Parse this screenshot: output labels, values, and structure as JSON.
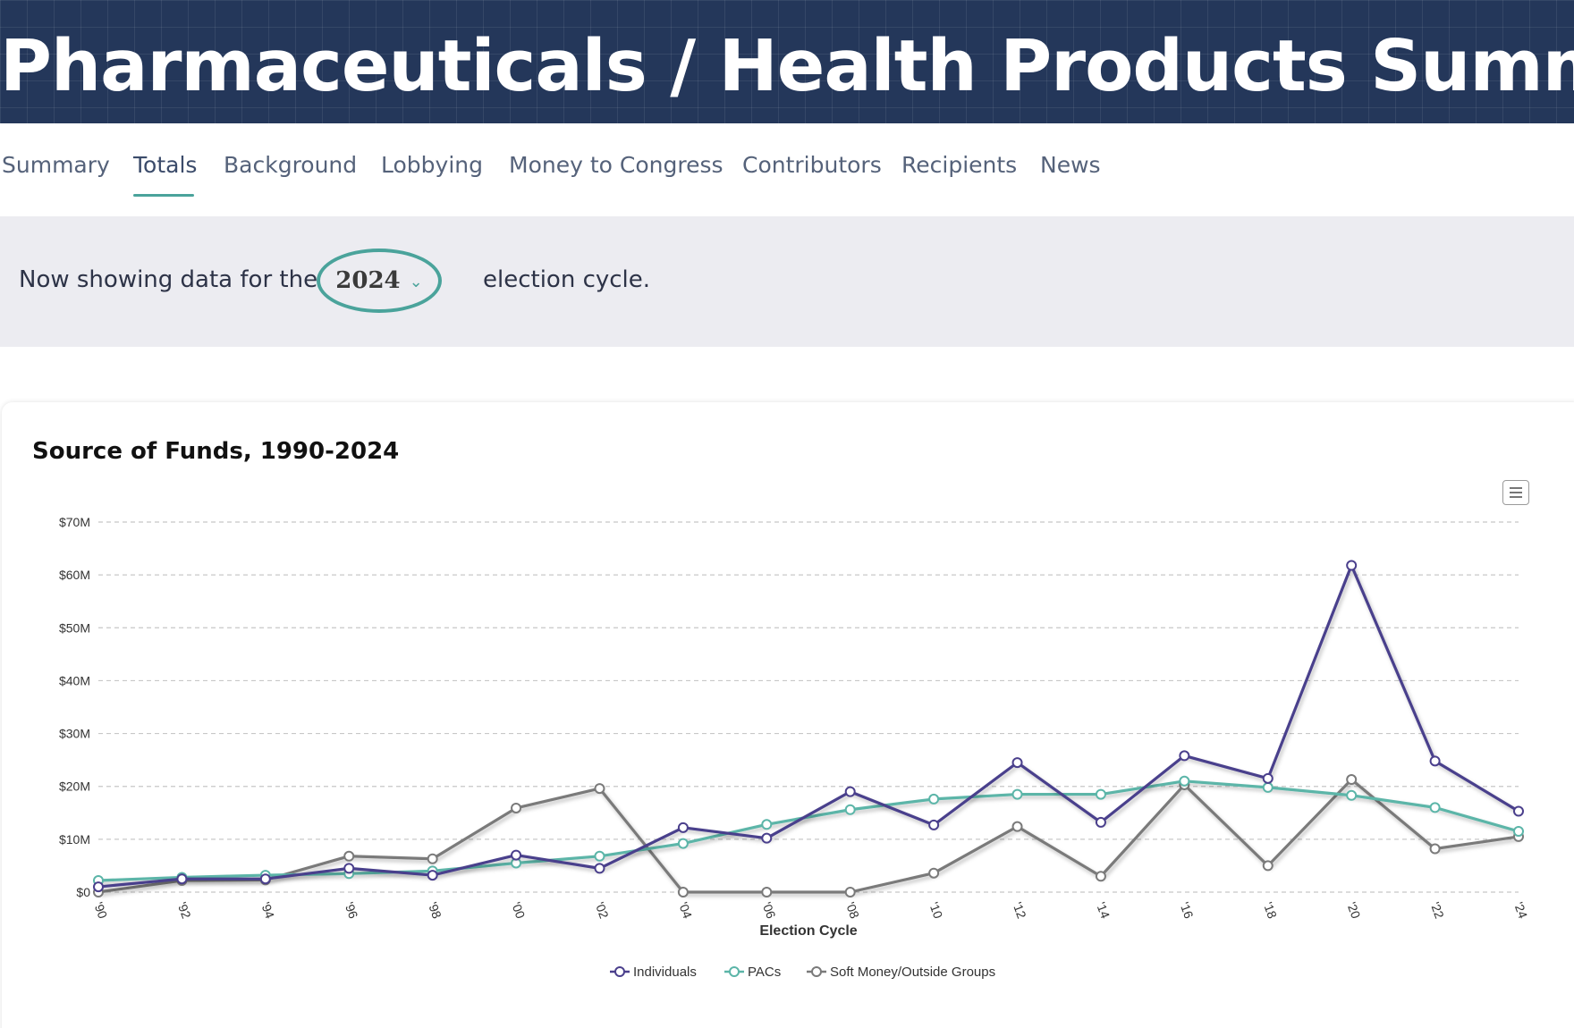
{
  "page": {
    "title": "Pharmaceuticals / Health Products Summary"
  },
  "tabs": [
    {
      "label": "Summary",
      "active": false
    },
    {
      "label": "Totals",
      "active": true
    },
    {
      "label": "Background",
      "active": false
    },
    {
      "label": "Lobbying",
      "active": false
    },
    {
      "label": "Money to Congress",
      "active": false
    },
    {
      "label": "Contributors",
      "active": false
    },
    {
      "label": "Recipients",
      "active": false
    },
    {
      "label": "News",
      "active": false
    }
  ],
  "cycle": {
    "prefix": "Now showing data for the",
    "value": "2024",
    "suffix": "election cycle."
  },
  "colors": {
    "header_bg": "#24375a",
    "accent": "#4aa39b",
    "individuals": "#4a3f8c",
    "pacs": "#5bb5a8",
    "soft_money": "#7a7a7a"
  },
  "chart_data": {
    "type": "line",
    "title": "Source of Funds, 1990-2024",
    "xlabel": "Election Cycle",
    "ylabel": "",
    "ylim": [
      0,
      70
    ],
    "yticks": [
      "$0",
      "$10M",
      "$20M",
      "$30M",
      "$40M",
      "$50M",
      "$60M",
      "$70M"
    ],
    "categories": [
      "'90",
      "'92",
      "'94",
      "'96",
      "'98",
      "'00",
      "'02",
      "'04",
      "'06",
      "'08",
      "'10",
      "'12",
      "'14",
      "'16",
      "'18",
      "'20",
      "'22",
      "'24"
    ],
    "series": [
      {
        "name": "Individuals",
        "values": [
          1.0,
          2.5,
          2.5,
          4.5,
          3.2,
          7.0,
          4.5,
          12.2,
          10.2,
          19.0,
          12.7,
          24.5,
          13.2,
          25.8,
          21.5,
          61.8,
          24.8,
          15.3
        ]
      },
      {
        "name": "PACs",
        "values": [
          2.2,
          2.8,
          3.2,
          3.5,
          4.0,
          5.5,
          6.8,
          9.2,
          12.8,
          15.6,
          17.6,
          18.5,
          18.5,
          21.0,
          19.8,
          18.3,
          16.0,
          11.5
        ]
      },
      {
        "name": "Soft Money/Outside Groups",
        "values": [
          0.0,
          2.2,
          2.3,
          6.8,
          6.3,
          15.9,
          19.6,
          0.0,
          0.0,
          0.0,
          3.6,
          12.4,
          3.0,
          20.3,
          5.0,
          21.3,
          8.2,
          10.5
        ]
      }
    ],
    "legend": [
      "Individuals",
      "PACs",
      "Soft Money/Outside Groups"
    ],
    "legend_position": "bottom-center",
    "grid": true
  }
}
